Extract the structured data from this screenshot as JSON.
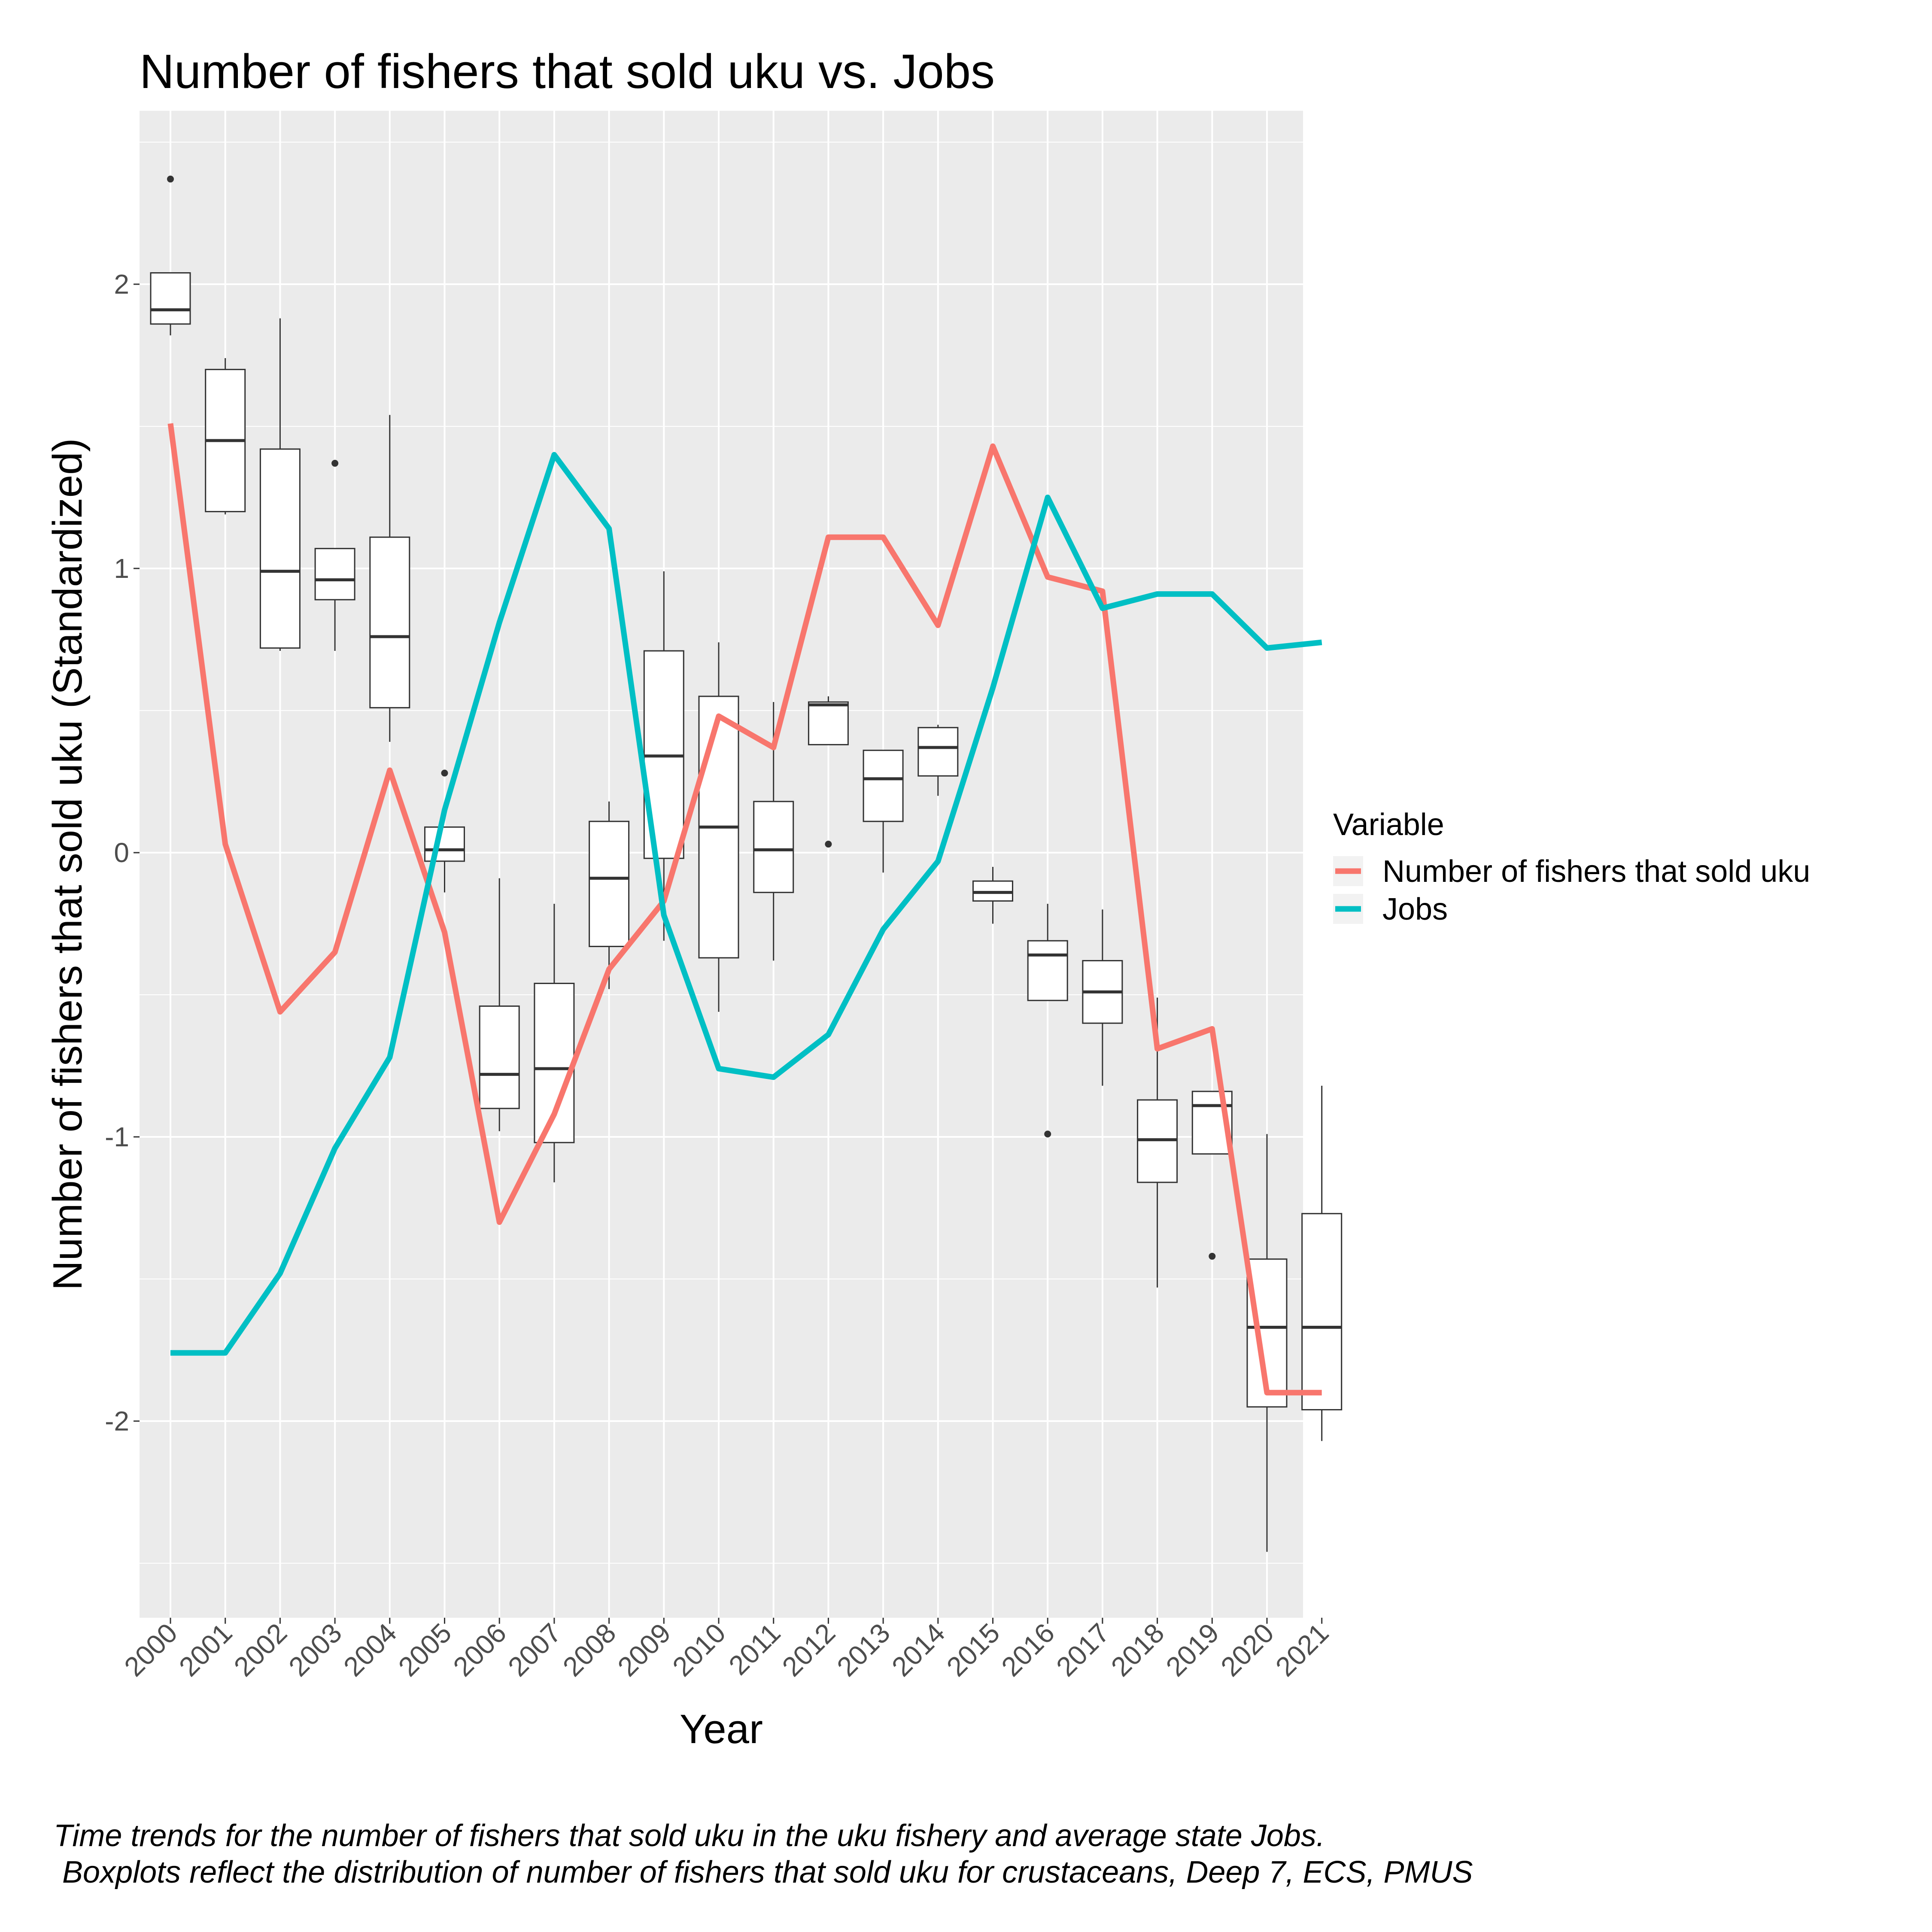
{
  "chart_data": {
    "type": "box+line",
    "title": "Number of fishers that sold uku vs. Jobs",
    "xlabel": "Year",
    "ylabel": "Number of fishers that sold uku (Standardized)",
    "ylim": [
      -2.7,
      2.6
    ],
    "yticks": [
      -2,
      -1,
      0,
      1,
      2
    ],
    "categories": [
      "2000",
      "2001",
      "2002",
      "2003",
      "2004",
      "2005",
      "2006",
      "2007",
      "2008",
      "2009",
      "2010",
      "2011",
      "2012",
      "2013",
      "2014",
      "2015",
      "2016",
      "2017",
      "2018",
      "2019",
      "2020",
      "2021"
    ],
    "legend": {
      "title": "Variable",
      "position": "right",
      "entries": [
        {
          "label": "Number of fishers that sold uku",
          "color": "#F8766D"
        },
        {
          "label": "Jobs",
          "color": "#00BFC4"
        }
      ]
    },
    "series": [
      {
        "name": "Number of fishers that sold uku",
        "color": "#F8766D",
        "values": [
          1.51,
          0.03,
          -0.56,
          -0.35,
          0.29,
          -0.28,
          -1.3,
          -0.92,
          -0.41,
          -0.17,
          0.48,
          0.37,
          1.11,
          1.11,
          0.8,
          1.43,
          0.97,
          0.92,
          -0.69,
          -0.62,
          -1.9,
          -1.9
        ]
      },
      {
        "name": "Jobs",
        "color": "#00BFC4",
        "values": [
          -1.76,
          -1.76,
          -1.48,
          -1.04,
          -0.72,
          0.15,
          0.81,
          1.4,
          1.14,
          -0.22,
          -0.76,
          -0.79,
          -0.64,
          -0.27,
          -0.03,
          0.58,
          1.25,
          0.86,
          0.91,
          0.91,
          0.72,
          0.74
        ]
      }
    ],
    "boxplots": [
      {
        "x": "2000",
        "lower": 1.82,
        "q1": 1.86,
        "median": 1.91,
        "q3": 2.04,
        "upper": 2.04,
        "outliers": [
          2.37
        ]
      },
      {
        "x": "2001",
        "lower": 1.19,
        "q1": 1.2,
        "median": 1.45,
        "q3": 1.7,
        "upper": 1.74,
        "outliers": []
      },
      {
        "x": "2002",
        "lower": 0.71,
        "q1": 0.72,
        "median": 0.99,
        "q3": 1.42,
        "upper": 1.88,
        "outliers": []
      },
      {
        "x": "2003",
        "lower": 0.71,
        "q1": 0.89,
        "median": 0.96,
        "q3": 1.07,
        "upper": 1.07,
        "outliers": [
          1.37
        ]
      },
      {
        "x": "2004",
        "lower": 0.39,
        "q1": 0.51,
        "median": 0.76,
        "q3": 1.11,
        "upper": 1.54,
        "outliers": []
      },
      {
        "x": "2005",
        "lower": -0.14,
        "q1": -0.03,
        "median": 0.01,
        "q3": 0.09,
        "upper": 0.09,
        "outliers": [
          0.28
        ]
      },
      {
        "x": "2006",
        "lower": -0.98,
        "q1": -0.9,
        "median": -0.78,
        "q3": -0.54,
        "upper": -0.09,
        "outliers": []
      },
      {
        "x": "2007",
        "lower": -1.16,
        "q1": -1.02,
        "median": -0.76,
        "q3": -0.46,
        "upper": -0.18,
        "outliers": []
      },
      {
        "x": "2008",
        "lower": -0.48,
        "q1": -0.33,
        "median": -0.09,
        "q3": 0.11,
        "upper": 0.18,
        "outliers": []
      },
      {
        "x": "2009",
        "lower": -0.31,
        "q1": -0.02,
        "median": 0.34,
        "q3": 0.71,
        "upper": 0.99,
        "outliers": []
      },
      {
        "x": "2010",
        "lower": -0.56,
        "q1": -0.37,
        "median": 0.09,
        "q3": 0.55,
        "upper": 0.74,
        "outliers": []
      },
      {
        "x": "2011",
        "lower": -0.38,
        "q1": -0.14,
        "median": 0.01,
        "q3": 0.18,
        "upper": 0.53,
        "outliers": []
      },
      {
        "x": "2012",
        "lower": 0.38,
        "q1": 0.38,
        "median": 0.52,
        "q3": 0.53,
        "upper": 0.55,
        "outliers": [
          0.03
        ]
      },
      {
        "x": "2013",
        "lower": -0.07,
        "q1": 0.11,
        "median": 0.26,
        "q3": 0.36,
        "upper": 0.36,
        "outliers": []
      },
      {
        "x": "2014",
        "lower": 0.2,
        "q1": 0.27,
        "median": 0.37,
        "q3": 0.44,
        "upper": 0.45,
        "outliers": []
      },
      {
        "x": "2015",
        "lower": -0.25,
        "q1": -0.17,
        "median": -0.14,
        "q3": -0.1,
        "upper": -0.05,
        "outliers": []
      },
      {
        "x": "2016",
        "lower": -0.52,
        "q1": -0.52,
        "median": -0.36,
        "q3": -0.31,
        "upper": -0.18,
        "outliers": [
          -0.99
        ]
      },
      {
        "x": "2017",
        "lower": -0.82,
        "q1": -0.6,
        "median": -0.49,
        "q3": -0.38,
        "upper": -0.2,
        "outliers": []
      },
      {
        "x": "2018",
        "lower": -1.53,
        "q1": -1.16,
        "median": -1.01,
        "q3": -0.87,
        "upper": -0.51,
        "outliers": []
      },
      {
        "x": "2019",
        "lower": -1.06,
        "q1": -1.06,
        "median": -0.89,
        "q3": -0.84,
        "upper": -0.84,
        "outliers": [
          -1.42
        ]
      },
      {
        "x": "2020",
        "lower": -2.46,
        "q1": -1.95,
        "median": -1.67,
        "q3": -1.43,
        "upper": -0.99,
        "outliers": []
      },
      {
        "x": "2021",
        "lower": -2.07,
        "q1": -1.96,
        "median": -1.67,
        "q3": -1.27,
        "upper": -0.82,
        "outliers": []
      }
    ],
    "grid": true,
    "caption": [
      "Time trends for the number of fishers that sold uku in the uku fishery and average state Jobs.",
      " Boxplots reflect the distribution of number of fishers that sold uku for crustaceans, Deep 7, ECS, PMUS"
    ]
  }
}
